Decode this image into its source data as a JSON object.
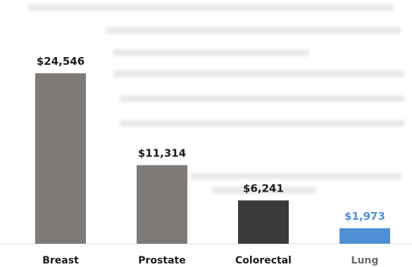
{
  "chart_data": {
    "type": "bar",
    "categories": [
      "Breast",
      "Prostate",
      "Colorectal",
      "Lung"
    ],
    "values": [
      24546,
      11314,
      6241,
      1973
    ],
    "value_labels": [
      "$24,546",
      "$11,314",
      "$6,241",
      "$1,973"
    ],
    "title": "",
    "xlabel": "",
    "ylabel": "",
    "ylim": [
      0,
      24546
    ],
    "grid": false,
    "legend": "none",
    "colors": [
      "#7e7a78",
      "#7e7a78",
      "#3a3a3a",
      "#4f8fd6"
    ],
    "label_colors": [
      "#1c1c1c",
      "#1c1c1c",
      "#1c1c1c",
      "#4f8fd6"
    ],
    "tick_label_colors": [
      "#1c1c1c",
      "#1c1c1c",
      "#1c1c1c",
      "#6a6a6a"
    ]
  }
}
